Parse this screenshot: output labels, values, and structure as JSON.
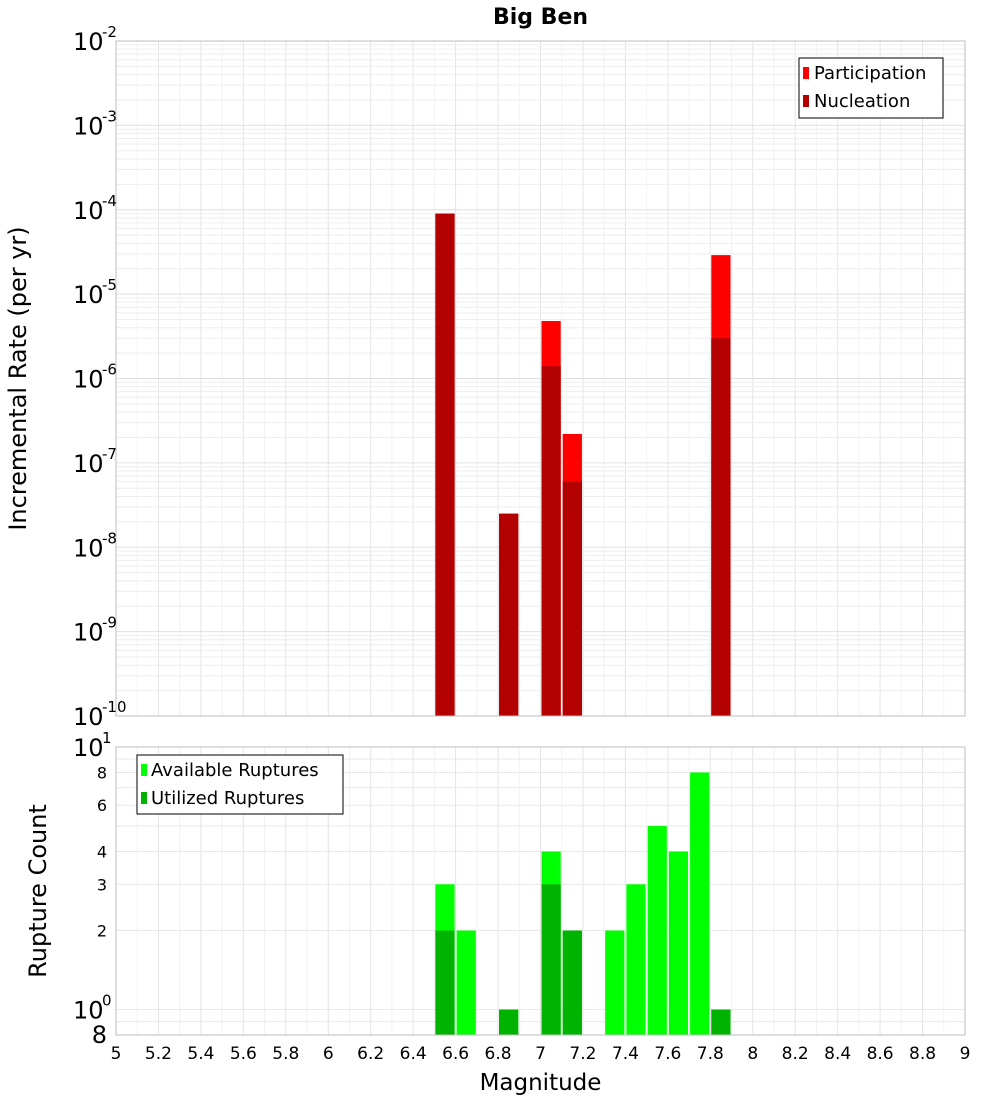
{
  "chart_data": [
    {
      "type": "bar",
      "title": "Big Ben",
      "ylabel": "Incremental Rate (per yr)",
      "yscale": "log",
      "ylim": [
        1e-10,
        0.01
      ],
      "y_ticks": [
        {
          "base": "10",
          "exp": "-2"
        },
        {
          "base": "10",
          "exp": "-3"
        },
        {
          "base": "10",
          "exp": "-4"
        },
        {
          "base": "10",
          "exp": "-5"
        },
        {
          "base": "10",
          "exp": "-6"
        },
        {
          "base": "10",
          "exp": "-7"
        },
        {
          "base": "10",
          "exp": "-8"
        },
        {
          "base": "10",
          "exp": "-9"
        },
        {
          "base": "10",
          "exp": "-10"
        }
      ],
      "grid": true,
      "legend_position": "top-right",
      "colors": {
        "Participation": "#ff0000",
        "Nucleation": "#b30000"
      },
      "series": [
        {
          "name": "Participation",
          "x": [
            6.55,
            6.85,
            7.05,
            7.15,
            7.85
          ],
          "values": [
            9e-05,
            2.5e-08,
            4.8e-06,
            2.2e-07,
            2.9e-05
          ]
        },
        {
          "name": "Nucleation",
          "x": [
            6.55,
            6.85,
            7.05,
            7.15,
            7.85
          ],
          "values": [
            9e-05,
            2.5e-08,
            1.4e-06,
            6e-08,
            3e-06
          ]
        }
      ]
    },
    {
      "type": "bar",
      "xlabel": "Magnitude",
      "ylabel": "Rupture Count",
      "yscale": "log",
      "ylim": [
        0.8,
        10
      ],
      "xlim": [
        5,
        9
      ],
      "x_ticks": [
        "5",
        "5.2",
        "5.4",
        "5.6",
        "5.8",
        "6",
        "6.2",
        "6.4",
        "6.6",
        "6.8",
        "7",
        "7.2",
        "7.4",
        "7.6",
        "7.8",
        "8",
        "8.2",
        "8.4",
        "8.6",
        "8.8",
        "9"
      ],
      "y_ticks": [
        {
          "value": 10,
          "base": "10",
          "exp": "1"
        },
        {
          "value": 8,
          "label": "8"
        },
        {
          "value": 6,
          "label": "6"
        },
        {
          "value": 4,
          "label": "4"
        },
        {
          "value": 3,
          "label": "3"
        },
        {
          "value": 2,
          "label": "2"
        },
        {
          "value": 1,
          "base": "10",
          "exp": "0"
        },
        {
          "value": 0.8,
          "label": "8"
        }
      ],
      "grid": true,
      "legend_position": "top-left",
      "colors": {
        "Available Ruptures": "#00ff00",
        "Utilized Ruptures": "#00b300"
      },
      "series": [
        {
          "name": "Available Ruptures",
          "x": [
            6.55,
            6.65,
            6.85,
            7.05,
            7.15,
            7.35,
            7.45,
            7.55,
            7.65,
            7.75,
            7.85
          ],
          "values": [
            3,
            2,
            1,
            4,
            2,
            2,
            3,
            5,
            4,
            8,
            1
          ]
        },
        {
          "name": "Utilized Ruptures",
          "x": [
            6.55,
            6.85,
            7.05,
            7.15,
            7.85
          ],
          "values": [
            2,
            1,
            3,
            2,
            1
          ]
        }
      ]
    }
  ]
}
